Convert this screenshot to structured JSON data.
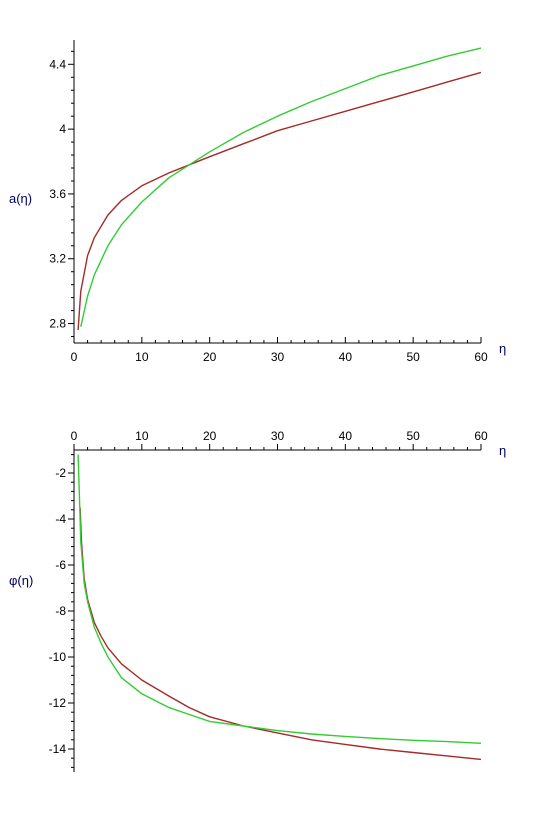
{
  "chart_data": [
    {
      "type": "line",
      "title": "",
      "xlabel": "η",
      "ylabel": "a(η)",
      "xlim": [
        0,
        60
      ],
      "ylim": [
        2.68,
        4.55
      ],
      "x_ticks": [
        0,
        10,
        20,
        30,
        40,
        50,
        60
      ],
      "x_tick_labels": [
        "0",
        "10",
        "20",
        "30",
        "40",
        "50",
        "60"
      ],
      "y_ticks": [
        2.8,
        3.2,
        3.6,
        4,
        4.4
      ],
      "y_tick_labels": [
        "2.8",
        "3.2",
        "3.6",
        "4",
        "4.4"
      ],
      "grid": false,
      "legend": "none",
      "series": [
        {
          "color": "#a52a2a",
          "x": [
            0.6,
            1,
            2,
            3,
            5,
            7,
            10,
            14,
            17,
            20,
            25,
            30,
            35,
            40,
            45,
            50,
            55,
            60
          ],
          "y": [
            2.76,
            3.0,
            3.22,
            3.33,
            3.47,
            3.56,
            3.65,
            3.73,
            3.78,
            3.83,
            3.91,
            3.99,
            4.05,
            4.11,
            4.17,
            4.23,
            4.29,
            4.35
          ]
        },
        {
          "color": "#33cc33",
          "x": [
            1,
            2,
            3,
            5,
            7,
            10,
            14,
            17,
            20,
            25,
            30,
            35,
            40,
            45,
            50,
            55,
            60
          ],
          "y": [
            2.78,
            2.97,
            3.1,
            3.28,
            3.41,
            3.55,
            3.7,
            3.78,
            3.86,
            3.98,
            4.08,
            4.17,
            4.25,
            4.33,
            4.39,
            4.45,
            4.5
          ]
        }
      ]
    },
    {
      "type": "line",
      "title": "",
      "xlabel": "η",
      "ylabel": "φ(η)",
      "xlim": [
        0,
        60
      ],
      "ylim": [
        -15,
        -1
      ],
      "x_axis_position": "top",
      "x_ticks": [
        0,
        10,
        20,
        30,
        40,
        50,
        60
      ],
      "x_tick_labels": [
        "0",
        "10",
        "20",
        "30",
        "40",
        "50",
        "60"
      ],
      "y_ticks": [
        -2,
        -4,
        -6,
        -8,
        -10,
        -12,
        -14
      ],
      "y_tick_labels": [
        "-2",
        "-4",
        "-6",
        "-8",
        "-10",
        "-12",
        "-14"
      ],
      "grid": false,
      "legend": "none",
      "series": [
        {
          "color": "#a52a2a",
          "x": [
            0.9,
            1.1,
            1.5,
            2,
            3,
            4,
            5,
            7,
            10,
            14,
            17,
            20,
            25,
            30,
            35,
            40,
            45,
            50,
            55,
            60
          ],
          "y": [
            -3.5,
            -5.0,
            -6.6,
            -7.5,
            -8.5,
            -9.1,
            -9.6,
            -10.3,
            -11.0,
            -11.7,
            -12.2,
            -12.6,
            -13.0,
            -13.3,
            -13.6,
            -13.8,
            -14.0,
            -14.15,
            -14.3,
            -14.45
          ]
        },
        {
          "color": "#33cc33",
          "x": [
            0.6,
            0.8,
            1.0,
            1.5,
            2,
            3,
            4,
            5,
            7,
            10,
            14,
            17,
            20,
            25,
            30,
            35,
            40,
            45,
            50,
            55,
            60
          ],
          "y": [
            -1.2,
            -3.0,
            -5.0,
            -6.8,
            -7.6,
            -8.7,
            -9.4,
            -10.0,
            -10.9,
            -11.6,
            -12.2,
            -12.5,
            -12.8,
            -13.0,
            -13.2,
            -13.35,
            -13.45,
            -13.55,
            -13.62,
            -13.68,
            -13.75
          ]
        }
      ]
    }
  ]
}
